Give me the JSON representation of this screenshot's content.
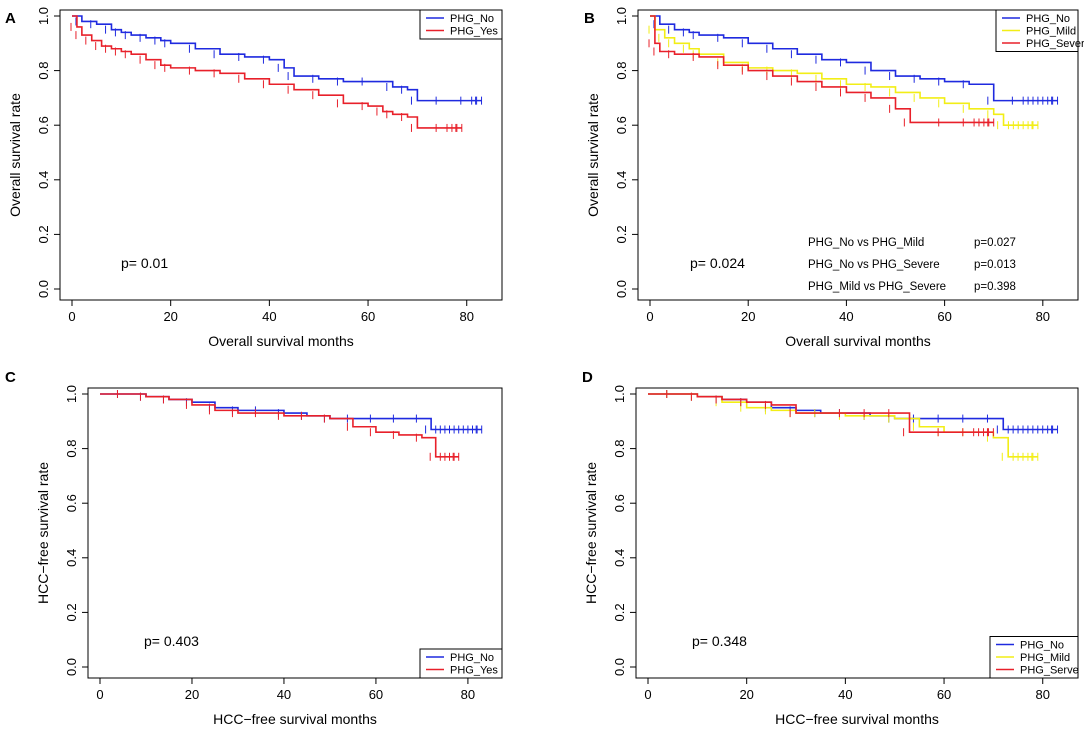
{
  "colors": {
    "PHG_No": "#1f2adf",
    "PHG_Yes": "#e8202a",
    "PHG_Mild": "#f2ee16",
    "PHG_Severe": "#e8202a"
  },
  "chart_data": [
    {
      "panel": "A",
      "type": "line",
      "title": "",
      "xlabel": "Overall survival months",
      "ylabel": "Overall survival rate",
      "xlim": [
        0,
        84
      ],
      "ylim": [
        0,
        1
      ],
      "xticks": [
        "0",
        "20",
        "40",
        "60",
        "80"
      ],
      "yticks": [
        "0.0",
        "0.2",
        "0.4",
        "0.6",
        "0.8",
        "1.0"
      ],
      "annotation": "p= 0.01",
      "legend": "top-right",
      "series": [
        {
          "name": "PHG_No",
          "color_key": "PHG_No",
          "x": [
            0,
            2,
            5,
            8,
            10,
            12,
            15,
            18,
            20,
            25,
            30,
            35,
            40,
            43,
            45,
            50,
            55,
            60,
            65,
            68,
            70,
            75,
            80,
            83
          ],
          "y": [
            1.0,
            0.98,
            0.97,
            0.95,
            0.94,
            0.93,
            0.92,
            0.91,
            0.9,
            0.88,
            0.86,
            0.85,
            0.84,
            0.81,
            0.78,
            0.77,
            0.76,
            0.76,
            0.74,
            0.73,
            0.69,
            0.69,
            0.69,
            0.69
          ]
        },
        {
          "name": "PHG_Yes",
          "color_key": "PHG_Yes",
          "x": [
            0,
            1,
            2,
            4,
            6,
            8,
            10,
            12,
            15,
            18,
            20,
            25,
            30,
            35,
            40,
            45,
            50,
            55,
            60,
            63,
            65,
            68,
            70,
            75,
            79
          ],
          "y": [
            1.0,
            0.96,
            0.93,
            0.91,
            0.89,
            0.88,
            0.87,
            0.86,
            0.84,
            0.82,
            0.81,
            0.8,
            0.79,
            0.77,
            0.75,
            0.73,
            0.71,
            0.68,
            0.67,
            0.65,
            0.64,
            0.63,
            0.59,
            0.59,
            0.59
          ]
        }
      ]
    },
    {
      "panel": "B",
      "type": "line",
      "title": "",
      "xlabel": "Overall survival months",
      "ylabel": "Overall survival rate",
      "xlim": [
        0,
        84
      ],
      "ylim": [
        0,
        1
      ],
      "xticks": [
        "0",
        "20",
        "40",
        "60",
        "80"
      ],
      "yticks": [
        "0.0",
        "0.2",
        "0.4",
        "0.6",
        "0.8",
        "1.0"
      ],
      "annotation": "p= 0.024",
      "legend": "top-right",
      "comparisons": [
        {
          "label": "PHG_No vs PHG_Mild",
          "p": "p=0.027"
        },
        {
          "label": "PHG_No vs PHG_Severe",
          "p": "p=0.013"
        },
        {
          "label": "PHG_Mild vs PHG_Severe",
          "p": "p=0.398"
        }
      ],
      "series": [
        {
          "name": "PHG_No",
          "color_key": "PHG_No",
          "x": [
            0,
            2,
            5,
            8,
            10,
            15,
            20,
            25,
            30,
            35,
            40,
            45,
            50,
            55,
            60,
            65,
            70,
            75,
            83
          ],
          "y": [
            1.0,
            0.97,
            0.95,
            0.94,
            0.93,
            0.92,
            0.9,
            0.88,
            0.86,
            0.84,
            0.83,
            0.8,
            0.78,
            0.77,
            0.76,
            0.75,
            0.69,
            0.69,
            0.69
          ]
        },
        {
          "name": "PHG_Mild",
          "color_key": "PHG_Mild",
          "x": [
            0,
            1,
            3,
            5,
            8,
            10,
            15,
            20,
            25,
            30,
            35,
            40,
            45,
            50,
            55,
            60,
            65,
            70,
            72,
            79
          ],
          "y": [
            1.0,
            0.95,
            0.92,
            0.9,
            0.88,
            0.86,
            0.83,
            0.81,
            0.8,
            0.79,
            0.77,
            0.75,
            0.74,
            0.72,
            0.7,
            0.68,
            0.66,
            0.64,
            0.6,
            0.6
          ]
        },
        {
          "name": "PHG_Severe",
          "color_key": "PHG_Severe",
          "x": [
            0,
            1,
            2,
            5,
            10,
            15,
            20,
            25,
            30,
            35,
            40,
            45,
            50,
            53,
            60,
            65,
            70
          ],
          "y": [
            1.0,
            0.9,
            0.87,
            0.86,
            0.85,
            0.82,
            0.8,
            0.78,
            0.76,
            0.74,
            0.72,
            0.7,
            0.66,
            0.61,
            0.61,
            0.61,
            0.61
          ]
        }
      ]
    },
    {
      "panel": "C",
      "type": "line",
      "title": "",
      "xlabel": "HCC−free survival months",
      "ylabel": "HCC−free survival rate",
      "xlim": [
        0,
        84
      ],
      "ylim": [
        0,
        1
      ],
      "xticks": [
        "0",
        "20",
        "40",
        "60",
        "80"
      ],
      "yticks": [
        "0.0",
        "0.2",
        "0.4",
        "0.6",
        "0.8",
        "1.0"
      ],
      "annotation": "p= 0.403",
      "legend": "bottom-right",
      "series": [
        {
          "name": "PHG_No",
          "color_key": "PHG_No",
          "x": [
            0,
            5,
            10,
            15,
            20,
            25,
            30,
            35,
            40,
            45,
            50,
            55,
            60,
            65,
            70,
            72,
            83
          ],
          "y": [
            1.0,
            1.0,
            0.99,
            0.98,
            0.97,
            0.95,
            0.94,
            0.94,
            0.93,
            0.92,
            0.91,
            0.91,
            0.91,
            0.91,
            0.91,
            0.87,
            0.87
          ]
        },
        {
          "name": "PHG_Yes",
          "color_key": "PHG_Yes",
          "x": [
            0,
            5,
            10,
            15,
            20,
            25,
            30,
            35,
            40,
            45,
            50,
            55,
            60,
            65,
            70,
            73,
            78
          ],
          "y": [
            1.0,
            1.0,
            0.99,
            0.98,
            0.96,
            0.94,
            0.93,
            0.93,
            0.92,
            0.92,
            0.91,
            0.88,
            0.86,
            0.85,
            0.84,
            0.77,
            0.77
          ]
        }
      ]
    },
    {
      "panel": "D",
      "type": "line",
      "title": "",
      "xlabel": "HCC−free survival months",
      "ylabel": "HCC−free survival rate",
      "xlim": [
        0,
        84
      ],
      "ylim": [
        0,
        1
      ],
      "xticks": [
        "0",
        "20",
        "40",
        "60",
        "80"
      ],
      "yticks": [
        "0.0",
        "0.2",
        "0.4",
        "0.6",
        "0.8",
        "1.0"
      ],
      "annotation": "p= 0.348",
      "legend": "bottom-right",
      "series": [
        {
          "name": "PHG_No",
          "color_key": "PHG_No",
          "x": [
            0,
            5,
            10,
            15,
            20,
            25,
            30,
            35,
            40,
            45,
            50,
            55,
            60,
            65,
            70,
            72,
            83
          ],
          "y": [
            1.0,
            1.0,
            0.99,
            0.98,
            0.97,
            0.95,
            0.94,
            0.93,
            0.93,
            0.92,
            0.91,
            0.91,
            0.91,
            0.91,
            0.91,
            0.87,
            0.87
          ]
        },
        {
          "name": "PHG_Mild",
          "color_key": "PHG_Mild",
          "x": [
            0,
            5,
            10,
            15,
            20,
            25,
            30,
            35,
            40,
            45,
            50,
            55,
            60,
            65,
            70,
            73,
            79
          ],
          "y": [
            1.0,
            1.0,
            0.99,
            0.97,
            0.95,
            0.94,
            0.93,
            0.93,
            0.92,
            0.92,
            0.91,
            0.88,
            0.86,
            0.86,
            0.84,
            0.77,
            0.77
          ]
        },
        {
          "name": "PHG_Serve",
          "color_key": "PHG_Severe",
          "x": [
            0,
            5,
            10,
            15,
            20,
            25,
            30,
            40,
            45,
            50,
            53,
            60,
            65,
            70
          ],
          "y": [
            1.0,
            1.0,
            0.99,
            0.98,
            0.97,
            0.96,
            0.93,
            0.93,
            0.93,
            0.93,
            0.86,
            0.86,
            0.86,
            0.86
          ]
        }
      ]
    }
  ]
}
